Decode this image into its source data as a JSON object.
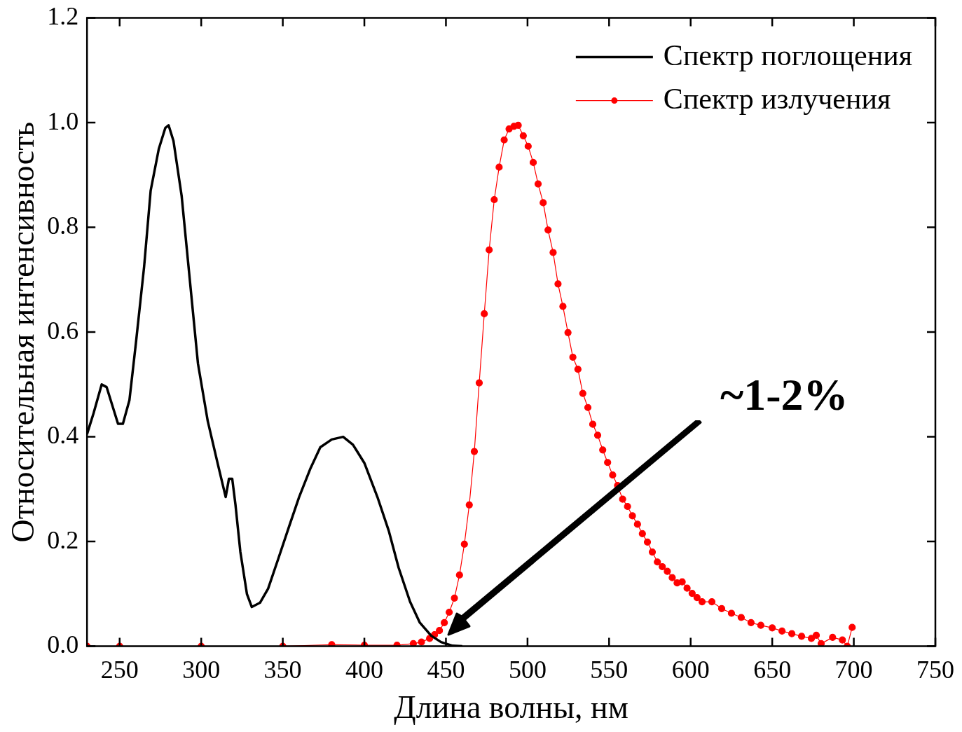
{
  "chart_data": {
    "type": "line",
    "xlabel": "Длина волны, нм",
    "ylabel": "Относительная интенсивность",
    "xlim": [
      230,
      750
    ],
    "xticks": [
      250,
      300,
      350,
      400,
      450,
      500,
      550,
      600,
      650,
      700,
      750
    ],
    "ylim": [
      0,
      1.2
    ],
    "yticks": [
      {
        "value": 0,
        "label": "0.0"
      },
      {
        "value": 0.2,
        "label": "0.2"
      },
      {
        "value": 0.4,
        "label": "0.4"
      },
      {
        "value": 0.6,
        "label": "0.6"
      },
      {
        "value": 0.8,
        "label": "0.8"
      },
      {
        "value": 1,
        "label": "1.0"
      },
      {
        "value": 1.2,
        "label": "1.2"
      }
    ],
    "grid": false,
    "legend": "top right",
    "annotations": [
      "~1-2%"
    ],
    "series": [
      {
        "name": "Спектр поглощения",
        "color": "#000000",
        "marker": "none",
        "x": [
          230,
          234,
          239,
          242,
          245,
          249,
          252,
          256,
          260,
          265,
          269,
          274,
          278,
          280,
          283,
          288,
          293,
          298,
          304,
          310,
          315,
          317,
          319,
          321,
          324,
          328,
          331,
          336,
          341,
          347,
          354,
          360,
          367,
          373,
          380,
          387,
          393,
          400,
          408,
          415,
          421,
          428,
          434,
          441,
          447,
          454,
          460
        ],
        "values": [
          0.405,
          0.445,
          0.5,
          0.495,
          0.465,
          0.425,
          0.425,
          0.47,
          0.58,
          0.725,
          0.87,
          0.95,
          0.99,
          0.995,
          0.965,
          0.86,
          0.7,
          0.54,
          0.43,
          0.35,
          0.285,
          0.32,
          0.32,
          0.27,
          0.18,
          0.1,
          0.075,
          0.083,
          0.11,
          0.165,
          0.23,
          0.285,
          0.34,
          0.38,
          0.395,
          0.4,
          0.385,
          0.35,
          0.285,
          0.22,
          0.15,
          0.085,
          0.045,
          0.02,
          0.008,
          0.001,
          0
        ]
      },
      {
        "name": "Спектр излучения",
        "color": "#ff0000",
        "marker": "circle",
        "x": [
          230,
          250,
          300,
          350,
          380,
          400,
          420,
          430,
          435,
          440,
          443,
          446,
          449,
          452,
          455.2,
          458.3,
          461.3,
          464.3,
          467.4,
          470.4,
          473.5,
          476.5,
          479.6,
          482.6,
          485.7,
          488.7,
          491.7,
          494.3,
          497.4,
          500.4,
          503.5,
          506.5,
          509.6,
          512.6,
          515.7,
          518.7,
          521.7,
          524.8,
          527.8,
          530.9,
          533.9,
          537,
          540,
          543,
          546.1,
          549.1,
          552.2,
          555.2,
          558.3,
          561.3,
          564.3,
          567.4,
          570.4,
          573.5,
          576.5,
          579.6,
          582.6,
          585.7,
          588.7,
          591.7,
          594.8,
          597.8,
          600.9,
          603.9,
          607,
          613,
          619,
          625,
          631,
          637,
          643,
          650,
          656,
          662,
          668,
          674,
          677,
          680,
          687,
          693,
          696,
          699
        ],
        "values": [
          0,
          0,
          0,
          0,
          0.003,
          0.002,
          0.002,
          0.005,
          0.008,
          0.015,
          0.022,
          0.03,
          0.045,
          0.065,
          0.092,
          0.136,
          0.195,
          0.27,
          0.372,
          0.503,
          0.635,
          0.757,
          0.853,
          0.915,
          0.967,
          0.988,
          0.993,
          0.995,
          0.975,
          0.955,
          0.924,
          0.883,
          0.847,
          0.795,
          0.752,
          0.692,
          0.649,
          0.599,
          0.552,
          0.529,
          0.483,
          0.456,
          0.424,
          0.403,
          0.375,
          0.351,
          0.327,
          0.307,
          0.281,
          0.267,
          0.249,
          0.233,
          0.215,
          0.199,
          0.18,
          0.161,
          0.152,
          0.143,
          0.131,
          0.121,
          0.123,
          0.111,
          0.101,
          0.093,
          0.085,
          0.085,
          0.072,
          0.063,
          0.055,
          0.045,
          0.04,
          0.035,
          0.029,
          0.024,
          0.019,
          0.015,
          0.021,
          0.005,
          0.017,
          0.012,
          0,
          0.036
        ]
      }
    ]
  }
}
